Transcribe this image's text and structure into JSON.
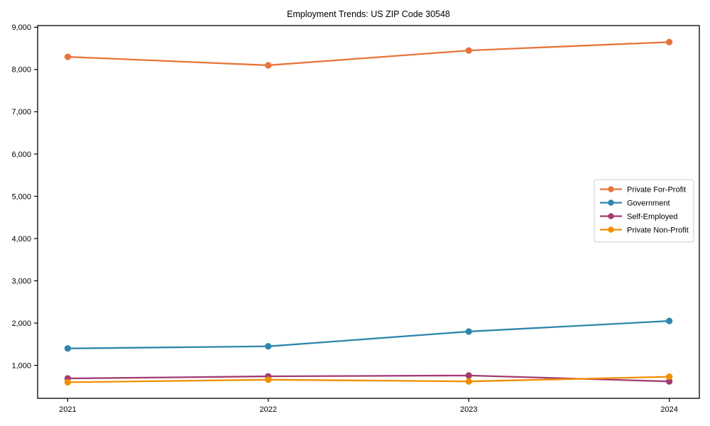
{
  "chart_data": {
    "type": "line",
    "title": "Employment Trends: US ZIP Code 30548",
    "xlabel": "",
    "ylabel": "",
    "x": [
      2021,
      2022,
      2023,
      2024
    ],
    "x_tick_labels": [
      "2021",
      "2022",
      "2023",
      "2024"
    ],
    "y_ticks": [
      1000,
      2000,
      3000,
      4000,
      5000,
      6000,
      7000,
      8000,
      9000
    ],
    "y_tick_labels": [
      "1,000",
      "2,000",
      "3,000",
      "4,000",
      "5,000",
      "6,000",
      "7,000",
      "8,000",
      "9,000"
    ],
    "xlim": [
      2020.85,
      2024.15
    ],
    "ylim": [
      220,
      9040
    ],
    "grid": false,
    "axis_color": "#000000",
    "legend": {
      "position": "center-right",
      "background": "#ffffff",
      "border_color": "#cccccc"
    },
    "series": [
      {
        "name": "Private For-Profit",
        "color": "#E8743B",
        "values": [
          8300,
          8100,
          8450,
          8650
        ]
      },
      {
        "name": "Government",
        "color": "#2E86AB",
        "values": [
          1400,
          1450,
          1800,
          2050
        ]
      },
      {
        "name": "Self-Employed",
        "color": "#A23B72",
        "values": [
          690,
          740,
          760,
          620
        ]
      },
      {
        "name": "Private Non-Profit",
        "color": "#F18F01",
        "values": [
          600,
          660,
          620,
          730
        ]
      }
    ]
  }
}
